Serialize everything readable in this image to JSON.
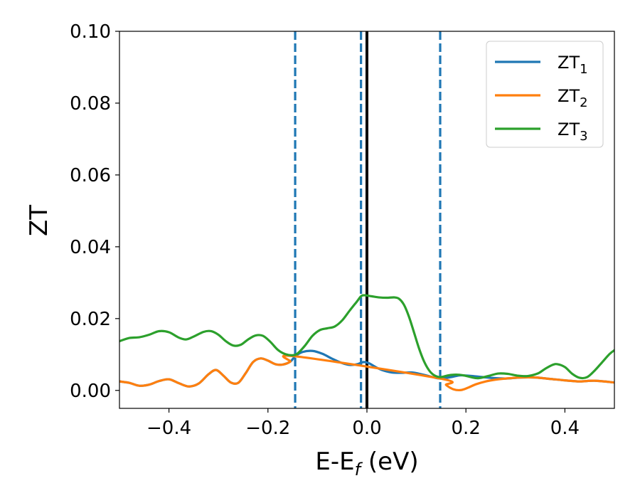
{
  "chart_data": {
    "type": "line",
    "xlabel_main": "E-E",
    "xlabel_sub": "f",
    "xlabel_tail": " (eV)",
    "ylabel": "ZT",
    "xlim": [
      -0.5,
      0.5
    ],
    "ylim": [
      -0.005,
      0.1
    ],
    "xticks": [
      -0.4,
      -0.2,
      0.0,
      0.2,
      0.4
    ],
    "xtick_labels": [
      "−0.4",
      "−0.2",
      "0.0",
      "0.2",
      "0.4"
    ],
    "yticks": [
      0.0,
      0.02,
      0.04,
      0.06,
      0.08,
      0.1
    ],
    "ytick_labels": [
      "0.00",
      "0.02",
      "0.04",
      "0.06",
      "0.08",
      "0.10"
    ],
    "grid": false,
    "legend_position": "top-right",
    "vlines": [
      {
        "x": -0.145,
        "style": "dashed",
        "color": "#1f77b4"
      },
      {
        "x": -0.012,
        "style": "dashed",
        "color": "#1f77b4"
      },
      {
        "x": 0.0,
        "style": "solid",
        "color": "#000000"
      },
      {
        "x": 0.148,
        "style": "dashed",
        "color": "#1f77b4"
      }
    ],
    "series": [
      {
        "name_main": "ZT",
        "name_sub": "1",
        "color": "#1f77b4",
        "points": [
          [
            -0.5,
            0.0025
          ],
          [
            -0.48,
            0.0021
          ],
          [
            -0.46,
            0.0013
          ],
          [
            -0.44,
            0.0016
          ],
          [
            -0.42,
            0.0026
          ],
          [
            -0.4,
            0.0031
          ],
          [
            -0.38,
            0.002
          ],
          [
            -0.36,
            0.0011
          ],
          [
            -0.34,
            0.0019
          ],
          [
            -0.32,
            0.0045
          ],
          [
            -0.305,
            0.0057
          ],
          [
            -0.29,
            0.0041
          ],
          [
            -0.275,
            0.0022
          ],
          [
            -0.26,
            0.0021
          ],
          [
            -0.245,
            0.0048
          ],
          [
            -0.23,
            0.0079
          ],
          [
            -0.215,
            0.0089
          ],
          [
            -0.2,
            0.0083
          ],
          [
            -0.185,
            0.0073
          ],
          [
            -0.17,
            0.0072
          ],
          [
            -0.155,
            0.008
          ],
          [
            -0.145,
            0.0095
          ],
          [
            -0.13,
            0.0107
          ],
          [
            -0.11,
            0.011
          ],
          [
            -0.09,
            0.0102
          ],
          [
            -0.07,
            0.0088
          ],
          [
            -0.05,
            0.0076
          ],
          [
            -0.035,
            0.0071
          ],
          [
            -0.02,
            0.0073
          ],
          [
            -0.012,
            0.0077
          ],
          [
            -0.005,
            0.0079
          ],
          [
            0.005,
            0.0075
          ],
          [
            0.015,
            0.0067
          ],
          [
            0.03,
            0.0057
          ],
          [
            0.05,
            0.005
          ],
          [
            0.07,
            0.0049
          ],
          [
            0.09,
            0.005
          ],
          [
            0.11,
            0.0045
          ],
          [
            0.13,
            0.0038
          ],
          [
            0.148,
            0.0033
          ],
          [
            0.17,
            0.0037
          ],
          [
            0.19,
            0.0042
          ],
          [
            0.22,
            0.0039
          ],
          [
            0.25,
            0.0035
          ],
          [
            0.28,
            0.0033
          ],
          [
            0.31,
            0.0036
          ],
          [
            0.34,
            0.0036
          ],
          [
            0.37,
            0.0032
          ],
          [
            0.4,
            0.0028
          ],
          [
            0.43,
            0.0025
          ],
          [
            0.46,
            0.0027
          ],
          [
            0.5,
            0.0022
          ]
        ]
      },
      {
        "name_main": "ZT",
        "name_sub": "2",
        "color": "#ff7f0e",
        "points": [
          [
            -0.5,
            0.0025
          ],
          [
            -0.48,
            0.0021
          ],
          [
            -0.46,
            0.0013
          ],
          [
            -0.44,
            0.0016
          ],
          [
            -0.42,
            0.0026
          ],
          [
            -0.4,
            0.0031
          ],
          [
            -0.38,
            0.002
          ],
          [
            -0.36,
            0.0011
          ],
          [
            -0.34,
            0.0019
          ],
          [
            -0.32,
            0.0045
          ],
          [
            -0.305,
            0.0057
          ],
          [
            -0.29,
            0.0041
          ],
          [
            -0.275,
            0.0022
          ],
          [
            -0.26,
            0.0021
          ],
          [
            -0.245,
            0.0048
          ],
          [
            -0.23,
            0.0079
          ],
          [
            -0.215,
            0.0089
          ],
          [
            -0.2,
            0.0083
          ],
          [
            -0.185,
            0.0073
          ],
          [
            -0.17,
            0.0072
          ],
          [
            -0.155,
            0.008
          ],
          [
            -0.145,
            0.0095
          ],
          [
            0.148,
            0.0033
          ],
          [
            0.16,
            0.0015
          ],
          [
            0.175,
            0.0003
          ],
          [
            0.19,
            0.0001
          ],
          [
            0.205,
            0.0008
          ],
          [
            0.22,
            0.0017
          ],
          [
            0.24,
            0.0025
          ],
          [
            0.26,
            0.003
          ],
          [
            0.28,
            0.0033
          ],
          [
            0.31,
            0.0036
          ],
          [
            0.34,
            0.0036
          ],
          [
            0.37,
            0.0032
          ],
          [
            0.4,
            0.0028
          ],
          [
            0.43,
            0.0025
          ],
          [
            0.46,
            0.0027
          ],
          [
            0.5,
            0.0022
          ]
        ]
      },
      {
        "name_main": "ZT",
        "name_sub": "3",
        "color": "#2ca02c",
        "points": [
          [
            -0.5,
            0.0137
          ],
          [
            -0.48,
            0.0146
          ],
          [
            -0.46,
            0.0148
          ],
          [
            -0.44,
            0.0155
          ],
          [
            -0.42,
            0.0165
          ],
          [
            -0.4,
            0.0162
          ],
          [
            -0.38,
            0.0147
          ],
          [
            -0.365,
            0.0142
          ],
          [
            -0.35,
            0.015
          ],
          [
            -0.33,
            0.0163
          ],
          [
            -0.315,
            0.0165
          ],
          [
            -0.3,
            0.0155
          ],
          [
            -0.285,
            0.0137
          ],
          [
            -0.27,
            0.0125
          ],
          [
            -0.255,
            0.0127
          ],
          [
            -0.24,
            0.0142
          ],
          [
            -0.225,
            0.0153
          ],
          [
            -0.21,
            0.0152
          ],
          [
            -0.195,
            0.0135
          ],
          [
            -0.18,
            0.0113
          ],
          [
            -0.165,
            0.0101
          ],
          [
            -0.15,
            0.0098
          ],
          [
            -0.14,
            0.0103
          ],
          [
            -0.125,
            0.0125
          ],
          [
            -0.11,
            0.0152
          ],
          [
            -0.095,
            0.0168
          ],
          [
            -0.08,
            0.0173
          ],
          [
            -0.065,
            0.0178
          ],
          [
            -0.05,
            0.0195
          ],
          [
            -0.035,
            0.0222
          ],
          [
            -0.02,
            0.0248
          ],
          [
            -0.012,
            0.0262
          ],
          [
            -0.005,
            0.0265
          ],
          [
            0.01,
            0.0262
          ],
          [
            0.025,
            0.0259
          ],
          [
            0.04,
            0.0258
          ],
          [
            0.055,
            0.0259
          ],
          [
            0.065,
            0.0255
          ],
          [
            0.075,
            0.0238
          ],
          [
            0.085,
            0.0205
          ],
          [
            0.095,
            0.0162
          ],
          [
            0.105,
            0.0118
          ],
          [
            0.115,
            0.0082
          ],
          [
            0.125,
            0.0057
          ],
          [
            0.135,
            0.0043
          ],
          [
            0.148,
            0.0037
          ],
          [
            0.165,
            0.0042
          ],
          [
            0.18,
            0.0044
          ],
          [
            0.195,
            0.0042
          ],
          [
            0.21,
            0.0037
          ],
          [
            0.225,
            0.0034
          ],
          [
            0.245,
            0.004
          ],
          [
            0.265,
            0.0047
          ],
          [
            0.285,
            0.0046
          ],
          [
            0.305,
            0.0041
          ],
          [
            0.325,
            0.004
          ],
          [
            0.345,
            0.0047
          ],
          [
            0.36,
            0.006
          ],
          [
            0.375,
            0.0071
          ],
          [
            0.385,
            0.0073
          ],
          [
            0.4,
            0.0065
          ],
          [
            0.415,
            0.0046
          ],
          [
            0.43,
            0.0035
          ],
          [
            0.445,
            0.0037
          ],
          [
            0.46,
            0.0055
          ],
          [
            0.475,
            0.0078
          ],
          [
            0.49,
            0.0101
          ],
          [
            0.5,
            0.0112
          ]
        ]
      }
    ]
  }
}
